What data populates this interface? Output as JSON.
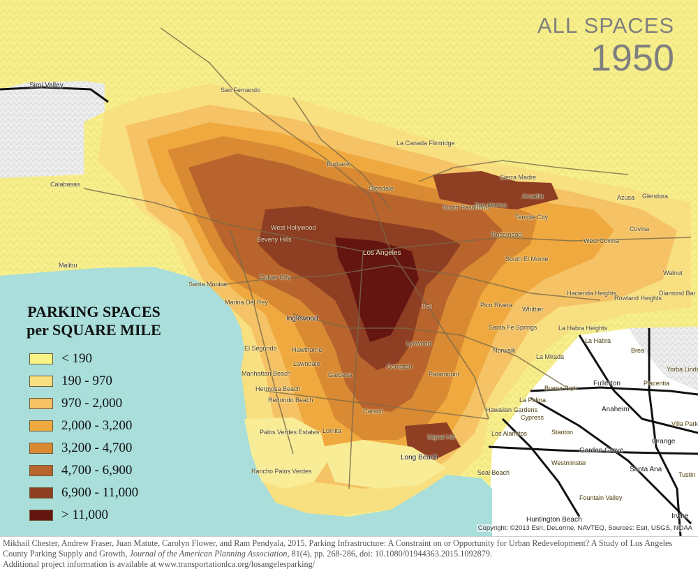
{
  "title": {
    "category": "ALL SPACES",
    "year": "1950"
  },
  "legend": {
    "title_line1": "PARKING SPACES",
    "title_line2": "per SQUARE MILE",
    "classes": [
      {
        "label": "< 190",
        "color": "#f7f385"
      },
      {
        "label": "190 - 970",
        "color": "#f8df7f"
      },
      {
        "label": "970 - 2,000",
        "color": "#f5c265"
      },
      {
        "label": "2,000 - 3,200",
        "color": "#efa93f"
      },
      {
        "label": "3,200 - 4,700",
        "color": "#d98a33"
      },
      {
        "label": "4,700 - 6,900",
        "color": "#b9642c"
      },
      {
        "label": "6,900 - 11,000",
        "color": "#8e3e23"
      },
      {
        "label": "> 11,000",
        "color": "#64150f"
      }
    ]
  },
  "colors": {
    "ocean": "#a9dedb",
    "outside": "#ffffff",
    "hillshade": "#ececec",
    "roads": "#7a6a4a",
    "freeway": "#111111"
  },
  "places": [
    "Simi Valley",
    "San Fernando",
    "La Canada Flintridge",
    "Burbank",
    "Calabasas",
    "Glendale",
    "Sierra Madre",
    "Arcadia",
    "Azusa",
    "Glendora",
    "South Pasadena",
    "San Marino",
    "Temple City",
    "West Hollywood",
    "Beverly Hills",
    "Rosemead",
    "Covina",
    "West Covina",
    "Los Angeles",
    "South El Monte",
    "Malibu",
    "Walnut",
    "Culver City",
    "Santa Monica",
    "Hacienda Heights",
    "Diamond Bar",
    "Marina Del Rey",
    "Rowland Heights",
    "Bell",
    "Pico Rivera",
    "Whittier",
    "Inglewood",
    "Santa Fe Springs",
    "La Habra Heights",
    "La Habra",
    "Brea",
    "El Segundo",
    "Hawthorne",
    "Lynwood",
    "Norwalk",
    "Lawndale",
    "Yorba Linda",
    "Compton",
    "La Mirada",
    "Manhattan Beach",
    "Gardena",
    "Paramount",
    "Fullerton",
    "Placentia",
    "Buena Park",
    "Hermosa Beach",
    "Redondo Beach",
    "Carson",
    "La Palma",
    "Anaheim",
    "Hawaiian Gardens",
    "Cypress",
    "Villa Park",
    "Palos Verdes Estates",
    "Lomita",
    "Signal Hill",
    "Los Alamitos",
    "Stanton",
    "Orange",
    "Garden Grove",
    "Long Beach",
    "Westminster",
    "Santa Ana",
    "Rancho Palos Verdes",
    "Seal Beach",
    "Tustin",
    "Fountain Valley",
    "Huntington Beach",
    "Irvine"
  ],
  "copyright": "Copyright: ©2013 Esri, DeLorme, NAVTEQ, Sources: Esri, USGS, NOAA",
  "citation": {
    "authors": "Mikhail Chester, Andrew Fraser, Juan Matute, Carolyn Flower, and Ram Pendyala, 2015, Parking Infrastructure: A Constraint on or Opportunity for Urban Redevelopment? A Study of Los Angeles County Parking Supply and Growth, ",
    "journal": "Journal of the American Planning Association",
    "details": ", 81(4), pp. 268-286, doi: 10.1080/01944363.2015.1092879.",
    "more": "Additional project information is available at www.transportationlca.org/losangelesparking/"
  }
}
